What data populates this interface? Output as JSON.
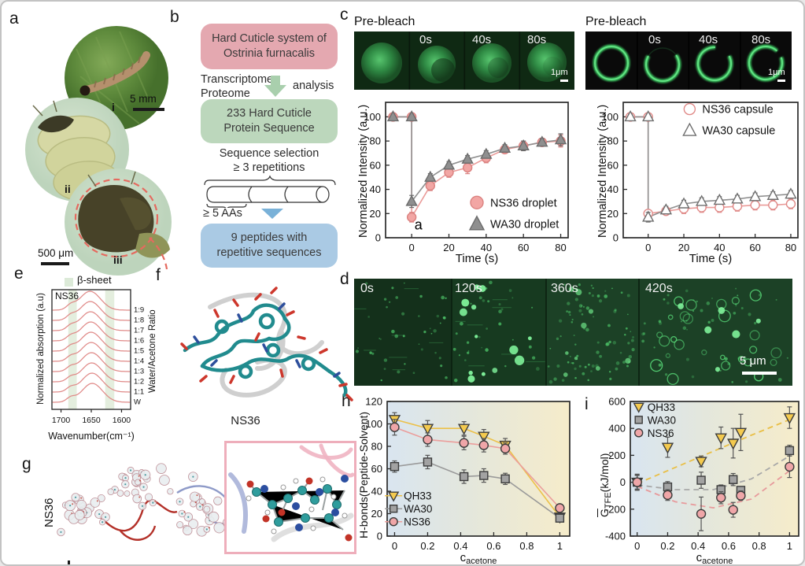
{
  "letters": {
    "a": "a",
    "b": "b",
    "c": "c",
    "d": "d",
    "e": "e",
    "f": "f",
    "g": "g",
    "h": "h",
    "i": "i"
  },
  "panel_a": {
    "sub_i": "i",
    "sub_ii": "ii",
    "sub_iii": "iii",
    "scale_top": "5 mm",
    "scale_bottom": "500 μm"
  },
  "panel_b": {
    "box1": "Hard Cuticle system of Ostrinia furnacalis",
    "step1_left1": "Transcriptome",
    "step1_left2": "Proteome",
    "step1_right": "analysis",
    "box2": "233 Hard Cuticle Protein Sequence",
    "step2_line1": "Sequence selection",
    "step2_line2": "≥ 3 repetitions",
    "cyl_label": "≥ 5 AAs",
    "box3": "9 peptides with repetitive sequences"
  },
  "panel_c": {
    "ylabel": "Normalized Intensity (a.u.)",
    "xlabel": "Time (s)",
    "left": {
      "prebleach": "Pre-bleach",
      "frames": [
        "0s",
        "40s",
        "80s"
      ],
      "scale": "1μm"
    },
    "right": {
      "prebleach": "Pre-bleach",
      "frames": [
        "0s",
        "40s",
        "80s"
      ],
      "scale": "1μm"
    }
  },
  "panel_d": {
    "frames": [
      "0s",
      "120s",
      "360s",
      "420s"
    ],
    "scale": "5 μm"
  },
  "panel_e": {
    "legend": "β-sheet",
    "title": "NS36",
    "ylabel": "Normalized absorption (a.u)",
    "right_label": "Water/Acetone Ratio",
    "xlabel": "Wavenumber(cm⁻¹)"
  },
  "panel_f": {
    "caption": "NS36"
  },
  "panel_g": {
    "caption": "NS36"
  },
  "panel_h": {
    "ylabel": "H-bonds(Peptide-Solvent)",
    "xc": "c",
    "xsub": "acetone"
  },
  "panel_i": {
    "g": "G",
    "sub": "TFE",
    "unit": "(kJ/mol)",
    "xc": "c",
    "xsub": "acetone"
  },
  "colors": {
    "ns36_pink": "#f2a6a4",
    "wa30_gray": "#8f8f8f",
    "qh33_yellow": "#f4ca4e",
    "flow_pink": "#e4a8b0",
    "flow_green": "#bcd7bc",
    "flow_blue": "#aacae4",
    "beta_band": "#e4eede",
    "micro_green": "#3fc863"
  },
  "chart_data": {
    "frap_droplet": {
      "type": "scatter",
      "xlabel": "Time (s)",
      "ylabel": "Normalized Intensity (a.u.)",
      "xlim": [
        -14,
        84
      ],
      "ylim": [
        0,
        112
      ],
      "xticks": [
        0,
        20,
        40,
        60,
        80
      ],
      "yticks": [
        0,
        20,
        40,
        60,
        80,
        100
      ],
      "annotation": {
        "text": "a",
        "x": 1.5,
        "y": 7
      },
      "series": [
        {
          "name": "NS36 droplet",
          "marker": "circle",
          "filled": true,
          "color": "#f2a6a4",
          "edge": "#db8280",
          "line_color": "#ea9b99",
          "x": [
            -10,
            0,
            0,
            10,
            20,
            30,
            40,
            50,
            60,
            70,
            80
          ],
          "y": [
            100,
            100,
            17,
            43,
            54,
            58,
            66,
            73,
            76,
            79,
            80
          ],
          "err": [
            2,
            2,
            4,
            4,
            4,
            5,
            4,
            3,
            4,
            3,
            5
          ]
        },
        {
          "name": "WA30 droplet",
          "marker": "triangle-up",
          "filled": true,
          "color": "#8f8f8f",
          "edge": "#6b6b6b",
          "line_color": "#8f8f8f",
          "x": [
            -10,
            0,
            0,
            10,
            20,
            30,
            40,
            50,
            60,
            70,
            80
          ],
          "y": [
            100,
            100,
            30,
            50,
            60,
            65,
            69,
            74,
            76,
            79,
            81
          ],
          "err": [
            2,
            2,
            5,
            3,
            3,
            3,
            3,
            3,
            4,
            3,
            5
          ]
        }
      ]
    },
    "frap_capsule": {
      "type": "scatter",
      "xlabel": "Time (s)",
      "ylabel": "Normalized Intensity (a.u.)",
      "xlim": [
        -14,
        84
      ],
      "ylim": [
        0,
        112
      ],
      "xticks": [
        0,
        20,
        40,
        60,
        80
      ],
      "yticks": [
        0,
        20,
        40,
        60,
        80,
        100
      ],
      "series": [
        {
          "name": "NS36 capsule",
          "marker": "circle",
          "filled": false,
          "color": "#f2a6a4",
          "edge": "#e08a88",
          "line_color": "#ea9b99",
          "x": [
            -10,
            0,
            0,
            10,
            20,
            30,
            40,
            50,
            60,
            70,
            80
          ],
          "y": [
            100,
            100,
            20,
            22,
            24,
            25,
            25,
            26,
            27,
            27,
            28
          ],
          "err": [
            2,
            2,
            3,
            3,
            4,
            4,
            4,
            4,
            4,
            4,
            4
          ]
        },
        {
          "name": "WA30 capsule",
          "marker": "triangle-up",
          "filled": false,
          "color": "#8f8f8f",
          "edge": "#6e6e6e",
          "line_color": "#8f8f8f",
          "x": [
            -10,
            0,
            0,
            10,
            20,
            30,
            40,
            50,
            60,
            70,
            80
          ],
          "y": [
            100,
            100,
            17,
            23,
            28,
            30,
            31,
            32,
            34,
            35,
            36
          ],
          "err": [
            2,
            2,
            4,
            3,
            3,
            3,
            3,
            3,
            3,
            3,
            3
          ]
        }
      ]
    },
    "hbonds": {
      "type": "scatter",
      "xlabel": "c_acetone",
      "ylabel": "H-bonds(Peptide-Solvent)",
      "xlim": [
        -0.045,
        1.06
      ],
      "ylim": [
        0,
        120
      ],
      "xticks": [
        0,
        0.2,
        0.4,
        0.6,
        0.8,
        1
      ],
      "yticks": [
        0,
        20,
        40,
        60,
        80,
        100,
        120
      ],
      "series": [
        {
          "name": "QH33",
          "marker": "triangle-down",
          "filled": true,
          "color": "#f4ca4e",
          "edge": "#3c3c3c",
          "line_color": "#ecc14a",
          "err_color": "#555",
          "x": [
            0,
            0.2,
            0.42,
            0.54,
            0.67,
            1
          ],
          "y": [
            104,
            96,
            96,
            89,
            81,
            17
          ],
          "err": [
            6,
            7,
            6,
            6,
            6,
            3
          ]
        },
        {
          "name": "WA30",
          "marker": "square",
          "filled": true,
          "color": "#a2a2a2",
          "edge": "#3c3c3c",
          "line_color": "#9a9a9a",
          "err_color": "#555",
          "x": [
            0,
            0.2,
            0.42,
            0.54,
            0.67,
            1
          ],
          "y": [
            62,
            66,
            53,
            54,
            51,
            16
          ],
          "err": [
            5,
            6,
            6,
            6,
            5,
            3
          ]
        },
        {
          "name": "NS36",
          "marker": "circle",
          "filled": true,
          "color": "#efa6a8",
          "edge": "#3c3c3c",
          "line_color": "#eb9e9c",
          "err_color": "#555",
          "x": [
            0,
            0.2,
            0.42,
            0.54,
            0.67,
            1
          ],
          "y": [
            97,
            86,
            83,
            81,
            78,
            25
          ],
          "err": [
            7,
            6,
            6,
            6,
            5,
            3
          ]
        }
      ]
    },
    "gtfe": {
      "type": "scatter",
      "xlabel": "c_acetone",
      "ylabel": "G_TFE (kJ/mol)",
      "xlim": [
        -0.045,
        1.06
      ],
      "ylim": [
        -400,
        600
      ],
      "xticks": [
        0,
        0.2,
        0.4,
        0.6,
        0.8,
        1
      ],
      "yticks": [
        -400,
        -200,
        0,
        200,
        400,
        600
      ],
      "series": [
        {
          "name": "QH33",
          "marker": "triangle-down",
          "filled": true,
          "color": "#f4ca4e",
          "edge": "#3c3c3c",
          "line": false,
          "err_color": "#555",
          "trend": [
            [
              0,
              -10
            ],
            [
              0.25,
              110
            ],
            [
              0.5,
              230
            ],
            [
              0.75,
              350
            ],
            [
              1,
              465
            ]
          ],
          "trend_color": "#e9bf47",
          "x": [
            0,
            0.2,
            0.42,
            0.55,
            0.63,
            0.68,
            1
          ],
          "y": [
            0,
            260,
            155,
            330,
            290,
            370,
            480
          ],
          "err": [
            60,
            75,
            40,
            80,
            110,
            135,
            80
          ]
        },
        {
          "name": "WA30",
          "marker": "square",
          "filled": true,
          "color": "#a2a2a2",
          "edge": "#3c3c3c",
          "line": false,
          "err_color": "#555",
          "trend": [
            [
              0,
              -20
            ],
            [
              0.25,
              -55
            ],
            [
              0.5,
              -55
            ],
            [
              0.75,
              25
            ],
            [
              1,
              195
            ]
          ],
          "trend_color": "#a8a8a8",
          "x": [
            0,
            0.2,
            0.42,
            0.55,
            0.63,
            0.68,
            1
          ],
          "y": [
            0,
            -35,
            15,
            -55,
            20,
            -60,
            235
          ],
          "err": [
            50,
            40,
            60,
            35,
            45,
            25,
            40
          ]
        },
        {
          "name": "NS36",
          "marker": "circle",
          "filled": true,
          "color": "#efa6a8",
          "edge": "#3c3c3c",
          "line": false,
          "err_color": "#555",
          "trend": [
            [
              0,
              -30
            ],
            [
              0.25,
              -145
            ],
            [
              0.5,
              -190
            ],
            [
              0.75,
              -125
            ],
            [
              1,
              85
            ]
          ],
          "trend_color": "#e79a9c",
          "x": [
            0,
            0.2,
            0.42,
            0.55,
            0.63,
            0.68,
            1
          ],
          "y": [
            0,
            -95,
            -235,
            -115,
            -205,
            -100,
            115
          ],
          "err": [
            55,
            40,
            125,
            45,
            55,
            35,
            80
          ]
        }
      ]
    },
    "ftir": {
      "type": "spectra",
      "title": "NS36",
      "ratios": [
        "1:9",
        "1:8",
        "1:7",
        "1:6",
        "1:5",
        "1:4",
        "1:3",
        "1:2",
        "1:1",
        "W"
      ],
      "xticks": [
        1700,
        1650,
        1600
      ],
      "xlim": [
        1715,
        1585
      ],
      "peak_center": 1650,
      "beta_sheet_bands": [
        [
          1688,
          1674
        ],
        [
          1627,
          1612
        ]
      ]
    }
  }
}
